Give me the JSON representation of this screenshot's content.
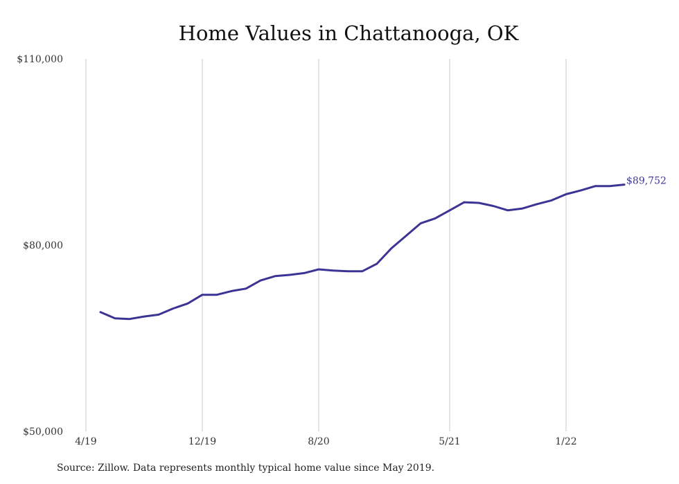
{
  "chart_data": {
    "type": "line",
    "title": "Home Values in Chattanooga, OK",
    "xlabel": "",
    "ylabel": "",
    "ylim": [
      50000,
      110000
    ],
    "y_ticks": [
      "$110,000",
      "$80,000",
      "$50,000"
    ],
    "y_tick_values": [
      110000,
      80000,
      50000
    ],
    "x_ticks": [
      "4/19",
      "12/19",
      "8/20",
      "5/21",
      "1/22"
    ],
    "x_tick_months": [
      "2019-04",
      "2019-12",
      "2020-08",
      "2021-05",
      "2022-01"
    ],
    "grid": "vertical",
    "series": [
      {
        "color": "#3c3494",
        "x": [
          "2019-05",
          "2019-06",
          "2019-07",
          "2019-08",
          "2019-09",
          "2019-10",
          "2019-11",
          "2019-12",
          "2020-01",
          "2020-02",
          "2020-03",
          "2020-04",
          "2020-05",
          "2020-06",
          "2020-07",
          "2020-08",
          "2020-09",
          "2020-10",
          "2020-11",
          "2020-12",
          "2021-01",
          "2021-02",
          "2021-03",
          "2021-04",
          "2021-05",
          "2021-06",
          "2021-07",
          "2021-08",
          "2021-09",
          "2021-10",
          "2021-11",
          "2021-12",
          "2022-01",
          "2022-02",
          "2022-03",
          "2022-04",
          "2022-05"
        ],
        "values": [
          69200,
          68200,
          68100,
          68500,
          68800,
          69800,
          70600,
          72000,
          72000,
          72600,
          73000,
          74300,
          75000,
          75200,
          75500,
          76100,
          75900,
          75800,
          75800,
          77000,
          79500,
          81500,
          83500,
          84300,
          85600,
          86900,
          86800,
          86300,
          85600,
          85900,
          86600,
          87200,
          88200,
          88800,
          89500,
          89500,
          89752
        ]
      }
    ],
    "end_label": "$89,752",
    "source_note": "Source: Zillow. Data represents monthly typical home value since May 2019."
  }
}
